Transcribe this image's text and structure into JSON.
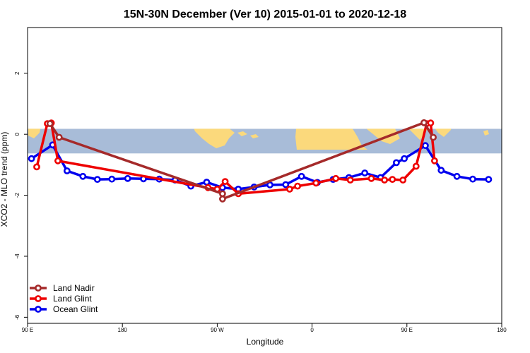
{
  "chart_data": {
    "type": "line",
    "title": "15N-30N December (Ver 10)   2015-01-01 to 2020-12-18",
    "xlabel": "Longitude",
    "ylabel": "XCO2 - MLO trend (ppm)",
    "xlim": [
      -90,
      270
    ],
    "ylim": [
      -6.2,
      3.5
    ],
    "x_ticks": [
      {
        "value": -90,
        "label": "90 E"
      },
      {
        "value": -18,
        "label": "180"
      },
      {
        "value": 54,
        "label": "90 W"
      },
      {
        "value": 126,
        "label": "0"
      },
      {
        "value": 198,
        "label": "90 E"
      },
      {
        "value": 270,
        "label": "180"
      }
    ],
    "y_ticks": [
      {
        "value": 2,
        "label": "2"
      },
      {
        "value": 0,
        "label": "0"
      },
      {
        "value": -2,
        "label": "-2"
      },
      {
        "value": -4,
        "label": "-4"
      },
      {
        "value": -6,
        "label": "-6"
      }
    ],
    "grid": false,
    "legend_position": "bottom-left",
    "map_band": {
      "y_top": 0.18,
      "y_bottom": -0.63,
      "ocean_color": "#a8bcd8",
      "land_color": "#fbd97c"
    },
    "series": [
      {
        "name": "Land Nadir",
        "color": "#a52a2a",
        "points": [
          [
            -73,
            0.35
          ],
          [
            -66,
            -0.1
          ],
          [
            58,
            -1.95
          ],
          [
            58,
            -2.12
          ],
          [
            211,
            0.38
          ],
          [
            218,
            -0.1
          ]
        ]
      },
      {
        "name": "Land Glint",
        "color": "#ee0000",
        "points": [
          [
            -83,
            -1.07
          ],
          [
            -75,
            0.35
          ],
          [
            -72,
            0.37
          ],
          [
            -67,
            -0.87
          ],
          [
            47,
            -1.75
          ],
          [
            54,
            -1.8
          ],
          [
            60,
            -1.55
          ],
          [
            70,
            -1.95
          ],
          [
            109,
            -1.8
          ],
          [
            115,
            -1.7
          ],
          [
            129,
            -1.6
          ],
          [
            144,
            -1.45
          ],
          [
            155,
            -1.5
          ],
          [
            171,
            -1.45
          ],
          [
            181,
            -1.5
          ],
          [
            187,
            -1.48
          ],
          [
            195,
            -1.5
          ],
          [
            205,
            -1.05
          ],
          [
            213,
            0.35
          ],
          [
            216,
            0.37
          ],
          [
            219,
            -0.87
          ]
        ]
      },
      {
        "name": "Ocean Glint",
        "color": "#0000ee",
        "points": [
          [
            -87,
            -0.8
          ],
          [
            -71,
            -0.35
          ],
          [
            -60,
            -1.2
          ],
          [
            -48,
            -1.38
          ],
          [
            -37,
            -1.48
          ],
          [
            -26,
            -1.47
          ],
          [
            -14,
            -1.45
          ],
          [
            -2,
            -1.46
          ],
          [
            10,
            -1.47
          ],
          [
            22,
            -1.5
          ],
          [
            34,
            -1.7
          ],
          [
            46,
            -1.57
          ],
          [
            58,
            -1.75
          ],
          [
            70,
            -1.8
          ],
          [
            82,
            -1.73
          ],
          [
            94,
            -1.66
          ],
          [
            106,
            -1.65
          ],
          [
            118,
            -1.38
          ],
          [
            130,
            -1.58
          ],
          [
            142,
            -1.48
          ],
          [
            154,
            -1.42
          ],
          [
            166,
            -1.27
          ],
          [
            178,
            -1.42
          ],
          [
            190,
            -0.93
          ],
          [
            196,
            -0.8
          ],
          [
            212,
            -0.37
          ],
          [
            224,
            -1.18
          ],
          [
            236,
            -1.38
          ],
          [
            248,
            -1.47
          ],
          [
            260,
            -1.48
          ]
        ]
      }
    ]
  }
}
